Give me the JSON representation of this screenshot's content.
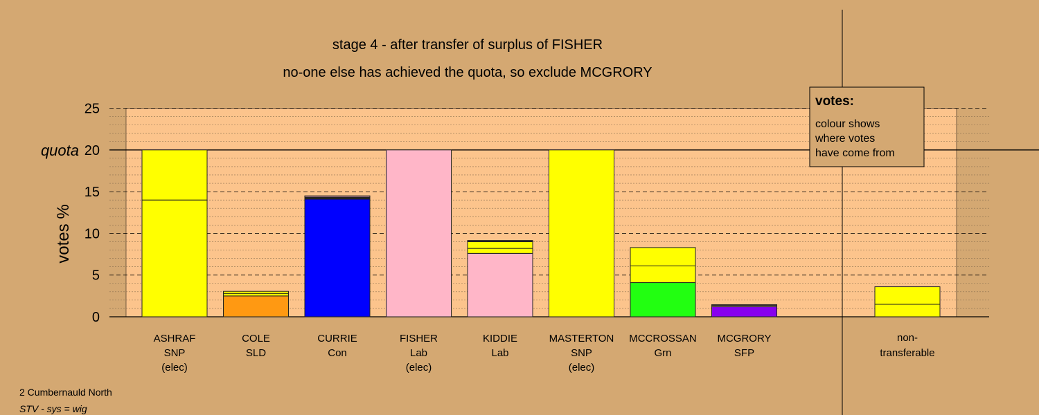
{
  "chart_data": {
    "type": "bar",
    "title": "stage 4 - after transfer of surplus of FISHER",
    "subtitle": "no-one else has achieved the quota, so exclude MCGRORY",
    "ylabel": "votes %",
    "ylim": [
      0,
      25
    ],
    "yticks": [
      "0",
      "5",
      "10",
      "15",
      "20",
      "25"
    ],
    "quota_value": 20,
    "quota_label": "quota",
    "grid": true,
    "stacked": true,
    "candidates": [
      {
        "name": "ASHRAF",
        "party": "SNP",
        "status": "(elec)",
        "segments": [
          {
            "value": 14.0,
            "color": "#ffff00"
          },
          {
            "value": 6.0,
            "color": "#ffff00"
          }
        ]
      },
      {
        "name": "COLE",
        "party": "SLD",
        "status": "",
        "segments": [
          {
            "value": 2.5,
            "color": "#ff9912"
          },
          {
            "value": 0.3,
            "color": "#ffff00"
          },
          {
            "value": 0.25,
            "color": "#ffff00"
          }
        ]
      },
      {
        "name": "CURRIE",
        "party": "Con",
        "status": "",
        "segments": [
          {
            "value": 14.1,
            "color": "#0000ff"
          },
          {
            "value": 0.25,
            "color": "#202020"
          },
          {
            "value": 0.15,
            "color": "#ffb6c8"
          }
        ]
      },
      {
        "name": "FISHER",
        "party": "Lab",
        "status": "(elec)",
        "segments": [
          {
            "value": 20.0,
            "color": "#ffb6c8"
          }
        ]
      },
      {
        "name": "KIDDIE",
        "party": "Lab",
        "status": "",
        "segments": [
          {
            "value": 7.6,
            "color": "#ffb6c8"
          },
          {
            "value": 0.6,
            "color": "#ffff00"
          },
          {
            "value": 0.8,
            "color": "#ffff00"
          },
          {
            "value": 0.15,
            "color": "#202020"
          }
        ]
      },
      {
        "name": "MASTERTON",
        "party": "SNP",
        "status": "(elec)",
        "segments": [
          {
            "value": 20.0,
            "color": "#ffff00"
          }
        ]
      },
      {
        "name": "MCCROSSAN",
        "party": "Grn",
        "status": "",
        "segments": [
          {
            "value": 4.1,
            "color": "#22ff11"
          },
          {
            "value": 2.0,
            "color": "#ffff00"
          },
          {
            "value": 2.2,
            "color": "#ffff00"
          }
        ]
      },
      {
        "name": "MCGRORY",
        "party": "SFP",
        "status": "",
        "segments": [
          {
            "value": 1.2,
            "color": "#8800ee"
          },
          {
            "value": 0.15,
            "color": "#ffb6c8"
          },
          {
            "value": 0.1,
            "color": "#202020"
          }
        ]
      },
      {
        "name": "",
        "party": "",
        "status": "",
        "segments": []
      }
    ],
    "nontransferable": {
      "label_line1": "non-",
      "label_line2": "transferable",
      "segments": [
        {
          "value": 1.5,
          "color": "#ffff00"
        },
        {
          "value": 2.1,
          "color": "#ffff00"
        }
      ]
    },
    "legend": {
      "heading": "votes:",
      "lines": [
        "colour shows",
        "where votes",
        "have come from"
      ]
    }
  },
  "footer": {
    "ward": "2 Cumbernauld North",
    "system": "STV - sys = wig"
  }
}
